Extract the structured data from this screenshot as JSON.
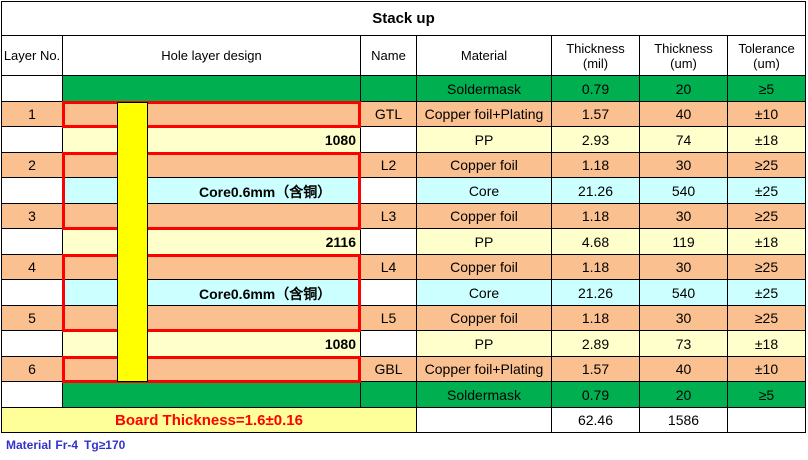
{
  "title": "Stack up",
  "headers": {
    "layer_no": "Layer No.",
    "hole_design": "Hole layer design",
    "name": "Name",
    "material": "Material",
    "thickness_mil": [
      "Thickness",
      "(mil)"
    ],
    "thickness_um": [
      "Thickness",
      "(um)"
    ],
    "tolerance": [
      "Tolerance",
      "(um)"
    ]
  },
  "rows": [
    {
      "layer": "",
      "design": "",
      "name": "",
      "material": "Soldermask",
      "mil": "0.79",
      "um": "20",
      "tol": "≥5"
    },
    {
      "layer": "1",
      "design": "",
      "name": "GTL",
      "material": "Copper foil+Plating",
      "mil": "1.57",
      "um": "40",
      "tol": "±10"
    },
    {
      "layer": "",
      "design": "1080",
      "name": "",
      "material": "PP",
      "mil": "2.93",
      "um": "74",
      "tol": "±18"
    },
    {
      "layer": "2",
      "design": "",
      "name": "L2",
      "material": "Copper foil",
      "mil": "1.18",
      "um": "30",
      "tol": "≥25"
    },
    {
      "layer": "",
      "design": "",
      "name": "",
      "material": "Core",
      "mil": "21.26",
      "um": "540",
      "tol": "±25"
    },
    {
      "layer": "3",
      "design": "",
      "name": "L3",
      "material": "Copper foil",
      "mil": "1.18",
      "um": "30",
      "tol": "≥25"
    },
    {
      "layer": "",
      "design": "2116",
      "name": "",
      "material": "PP",
      "mil": "4.68",
      "um": "119",
      "tol": "±18"
    },
    {
      "layer": "4",
      "design": "",
      "name": "L4",
      "material": "Copper foil",
      "mil": "1.18",
      "um": "30",
      "tol": "≥25"
    },
    {
      "layer": "",
      "design": "",
      "name": "",
      "material": "Core",
      "mil": "21.26",
      "um": "540",
      "tol": "±25"
    },
    {
      "layer": "5",
      "design": "",
      "name": "L5",
      "material": "Copper foil",
      "mil": "1.18",
      "um": "30",
      "tol": "≥25"
    },
    {
      "layer": "",
      "design": "1080",
      "name": "",
      "material": "PP",
      "mil": "2.89",
      "um": "73",
      "tol": "±18"
    },
    {
      "layer": "6",
      "design": "",
      "name": "GBL",
      "material": "Copper foil+Plating",
      "mil": "1.57",
      "um": "40",
      "tol": "±10"
    },
    {
      "layer": "",
      "design": "",
      "name": "",
      "material": "Soldermask",
      "mil": "0.79",
      "um": "20",
      "tol": "≥5"
    }
  ],
  "core_labels": [
    "Core0.6mm（含铜）",
    "Core0.6mm（含铜）"
  ],
  "board_thickness": "Board Thickness=1.6±0.16",
  "totals": {
    "mil": "62.46",
    "um": "1586"
  },
  "material_note": {
    "label": "Material",
    "value": "Fr-4",
    "tg": "Tg≥170"
  },
  "colors": {
    "soldermask": "#00b050",
    "copper": "#fac090",
    "pp": "#ffffcc",
    "core": "#ccffff",
    "via": "#ffff00",
    "red": "#ff0000",
    "board_bg": "#ffff99",
    "note": "#3333cc"
  }
}
